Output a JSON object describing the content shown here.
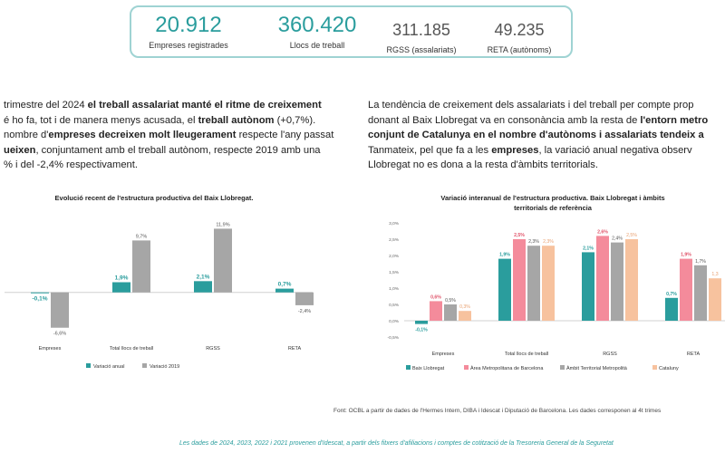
{
  "kpis": [
    {
      "value": "20.912",
      "label": "Empreses registrades"
    },
    {
      "value": "360.420",
      "label": "Llocs de treball"
    },
    {
      "value": "311.185",
      "label": "RGSS (assalariats)"
    },
    {
      "value": "49.235",
      "label": "RETA (autònoms)"
    }
  ],
  "paragraph_left": {
    "l1a": "trimestre del 2024 ",
    "l1b": "el treball assalariat manté el ritme de creixement",
    "l2a": "é ho fa, tot i de manera menys acusada, el ",
    "l2b": "treball autònom",
    "l2c": " (+0,7%).",
    "l3a": "nombre d'",
    "l3b": "empreses decreixen molt lleugerament",
    "l3c": " respecte l'any passat",
    "l4a": "ueixen",
    "l4b": ", conjuntament amb el treball autònom,  respecte 2019 amb una",
    "l5": "% i del -2,4% respectivament."
  },
  "paragraph_right": {
    "l1": "La tendència de creixement dels assalariats i del treball per compte prop",
    "l2a": "donant al Baix Llobregat va en consonància amb la resta de ",
    "l2b": "l'entorn metro",
    "l3a": "conjunt de Catalunya en el nombre d'autònoms i assalariats tendeix a",
    "l4a": "Tanmateix, pel que fa a les ",
    "l4b": "empreses",
    ", ": "",
    "l4c": ", la variació anual negativa observ",
    "l5": "Llobregat no es dona a la resta d'àmbits territorials."
  },
  "chart_data": [
    {
      "type": "bar",
      "title": "Evolució recent de l'estructura productiva del Baix Llobregat.",
      "categories": [
        "Empreses",
        "Total llocs de treball",
        "RGSS",
        "RETA"
      ],
      "series": [
        {
          "name": "Variació anual",
          "color": "#2a9d9d",
          "values": [
            -0.1,
            1.9,
            2.1,
            0.7
          ],
          "labels": [
            "-0,1%",
            "1,9%",
            "2,1%",
            "0,7%"
          ]
        },
        {
          "name": "Variació 2019",
          "color": "#a6a6a6",
          "values": [
            -6.6,
            9.7,
            11.9,
            -2.4
          ],
          "labels": [
            "-6,6%",
            "9,7%",
            "11,9%",
            "-2,4%"
          ]
        }
      ],
      "ylim": [
        -8,
        14
      ]
    },
    {
      "type": "bar",
      "title_line1": "Variació interanual de l'estructura productiva. Baix Llobregat i àmbits",
      "title_line2": "territorials de referència",
      "categories": [
        "Empreses",
        "Total llocs de treball",
        "RGSS",
        "RETA"
      ],
      "yticks": [
        "-0,5%",
        "0,0%",
        "0,5%",
        "1,0%",
        "1,5%",
        "2,0%",
        "2,5%",
        "3,0%"
      ],
      "ylim": [
        -0.5,
        3.0
      ],
      "series": [
        {
          "name": "Baix Llobregat",
          "color": "#2a9d9d",
          "values": [
            -0.1,
            1.9,
            2.1,
            0.7
          ],
          "labels": [
            "-0,1%",
            "1,9%",
            "2,1%",
            "0,7%"
          ]
        },
        {
          "name": "Àrea Metropolitana de Barcelona",
          "color": "#f48b9b",
          "values": [
            0.6,
            2.5,
            2.6,
            1.9
          ],
          "labels": [
            "0,6%",
            "2,5%",
            "2,6%",
            "1,9%"
          ]
        },
        {
          "name": "Àmbit Territorial Metropolità",
          "color": "#a6a6a6",
          "values": [
            0.5,
            2.3,
            2.4,
            1.7
          ],
          "labels": [
            "0,5%",
            "2,3%",
            "2,4%",
            "1,7%"
          ]
        },
        {
          "name": "Cataluny",
          "color": "#f7c29e",
          "values": [
            0.3,
            2.3,
            2.5,
            1.3
          ],
          "labels": [
            "0,3%",
            "2,3%",
            "2,5%",
            "1,3"
          ]
        }
      ]
    }
  ],
  "source": "Font: OCBL a partir de dades de l'Hermes Intern, DIBA i Idescat i Diputació de Barcelona. Les dades corresponen al 4t trimes",
  "footer": "Les dades de 2024, 2023, 2022 i 2021 provenen d'Idescat, a partir dels fitxers d'afiliacions i comptes de cotització de la Tresoreria General de la Seguretat"
}
